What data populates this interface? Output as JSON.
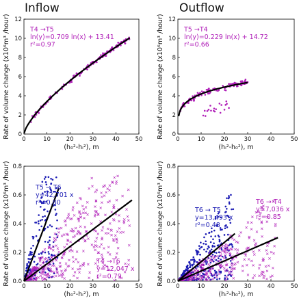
{
  "panel_titles": {
    "inflow": "Inflow",
    "outflow": "Outflow"
  },
  "colors": {
    "purple": "#b01fb8",
    "blue": "#1c1cb4",
    "fit": "#000000"
  },
  "chart_data": [
    {
      "id": "top-left",
      "type": "scatter",
      "xlabel": "(h₀²-hᵢ²), m",
      "ylabel": "Rate of volume change (x10⁶m³ /hour)",
      "xlim": [
        0,
        50
      ],
      "ylim": [
        0,
        12
      ],
      "xticks": [
        "0",
        "10",
        "20",
        "30",
        "40",
        "50"
      ],
      "yticks": [
        "0",
        "2",
        "4",
        "6",
        "8",
        "10",
        "12"
      ],
      "grid": false,
      "annotation": [
        "T4 →T5",
        "ln(y)=0.709 ln(x) + 13.41",
        "r²=0.97"
      ],
      "series": [
        {
          "color": "purple",
          "marker": "dot",
          "fit": {
            "kind": "power",
            "exponent": 0.709,
            "coef": 0.665,
            "x_range": [
              0.05,
              46
            ]
          },
          "x_range": [
            3,
            46
          ],
          "noise": 0.35,
          "n": 160
        }
      ]
    },
    {
      "id": "top-right",
      "type": "scatter",
      "xlabel": "(hᵢ²-h₀²), m",
      "ylabel": "Rate of volume change (x10⁶m³ /hour)",
      "xlim": [
        0,
        50
      ],
      "ylim": [
        0,
        12
      ],
      "xticks": [
        "0",
        "10",
        "20",
        "30",
        "40",
        "50"
      ],
      "yticks": [
        "0",
        "2",
        "4",
        "6",
        "8",
        "10",
        "12"
      ],
      "grid": false,
      "annotation": [
        "T5 →T4",
        "ln(y)=0.229 ln(x) + 14.72",
        "r²=0.66"
      ],
      "series": [
        {
          "color": "purple",
          "marker": "dot",
          "fit": {
            "kind": "power",
            "exponent": 0.229,
            "coef": 2.47,
            "x_range": [
              0.3,
              30
            ]
          },
          "x_range": [
            1,
            30
          ],
          "noise": 0.45,
          "n": 150
        }
      ]
    },
    {
      "id": "bottom-left",
      "type": "scatter",
      "xlabel": "(h₀²-hᵢ²), m",
      "ylabel": "Rate of volume change (x10⁶m³ /hour)",
      "xlim": [
        0,
        50
      ],
      "ylim": [
        0,
        0.8
      ],
      "xticks": [
        "0",
        "10",
        "20",
        "30",
        "40",
        "50"
      ],
      "yticks": [
        "0.0",
        "0.2",
        "0.4",
        "0.6",
        "0.8"
      ],
      "grid": false,
      "annotations": [
        {
          "color": "blue",
          "lines": [
            "T5 → T6",
            "y=42,701 x",
            "r²=0.80"
          ]
        },
        {
          "color": "purple",
          "lines": [
            "T4 →T6",
            "y=12,047 x",
            "r²=0.79"
          ]
        }
      ],
      "series": [
        {
          "color": "blue",
          "marker": "dot",
          "fit": {
            "kind": "linear",
            "slope": 0.0427,
            "x_range": [
              0,
              15.2
            ]
          },
          "x_range": [
            0,
            15
          ],
          "n": 200
        },
        {
          "color": "purple",
          "marker": "x",
          "fit": {
            "kind": "linear",
            "slope": 0.012,
            "x_range": [
              0,
              47
            ]
          },
          "x_range": [
            0,
            46
          ],
          "n": 420
        }
      ]
    },
    {
      "id": "bottom-right",
      "type": "scatter",
      "xlabel": "(hᵢ²-h₀²), m",
      "ylabel": "Rate of volume change (x10⁶m³ /hour)",
      "xlim": [
        0,
        50
      ],
      "ylim": [
        0,
        0.8
      ],
      "xticks": [
        "0",
        "10",
        "20",
        "30",
        "40",
        "50"
      ],
      "yticks": [
        "0.0",
        "0.2",
        "0.4",
        "0.6",
        "0.8"
      ],
      "grid": false,
      "annotations": [
        {
          "color": "blue",
          "lines": [
            "T6 → T5",
            "y=13,493 x",
            "r²=0.48"
          ]
        },
        {
          "color": "purple",
          "lines": [
            "T6 → T4",
            "y=7,036 x",
            "r²=0.85"
          ]
        }
      ],
      "series": [
        {
          "color": "blue",
          "marker": "dot",
          "fit": {
            "kind": "linear",
            "slope": 0.0135,
            "x_range": [
              0,
              24.5
            ]
          },
          "x_range": [
            0,
            24
          ],
          "n": 350
        },
        {
          "color": "purple",
          "marker": "x",
          "fit": {
            "kind": "linear",
            "slope": 0.00704,
            "x_range": [
              0,
              43
            ]
          },
          "x_range": [
            0,
            42
          ],
          "n": 320
        }
      ]
    }
  ]
}
